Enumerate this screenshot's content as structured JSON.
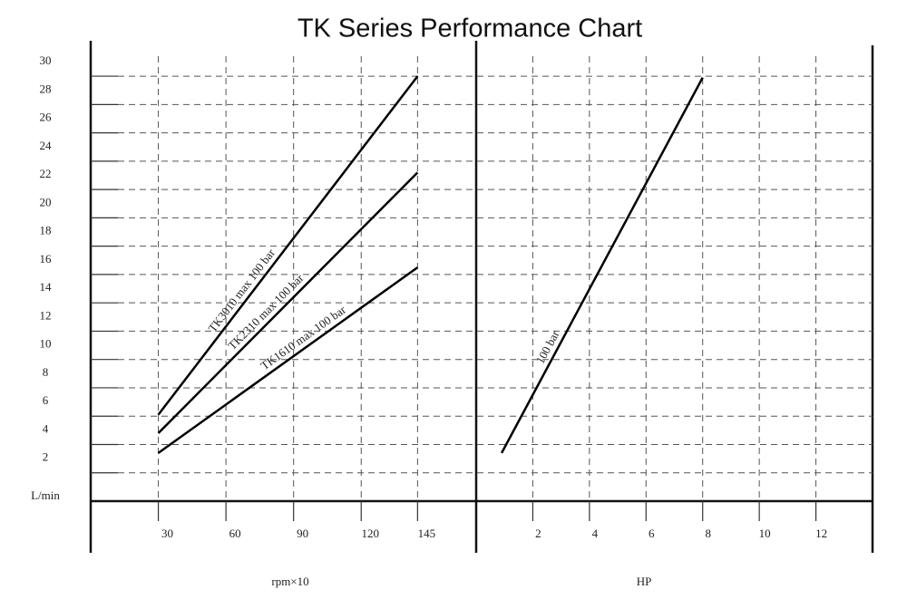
{
  "chart_data": [
    {
      "type": "line",
      "title": "TK Series Performance Chart",
      "x_label": "rpm×10",
      "y_label": "L/min",
      "x": [
        30,
        145
      ],
      "xlim": [
        0,
        171
      ],
      "xticks": [
        30,
        60,
        90,
        120,
        145
      ],
      "ylim": [
        0,
        32.5
      ],
      "yticks": [
        2,
        4,
        6,
        8,
        10,
        12,
        14,
        16,
        18,
        20,
        22,
        24,
        26,
        28,
        30
      ],
      "grid": true,
      "series": [
        {
          "name": "TK3010 max 100 bar",
          "color": "#000000",
          "values": [
            6.1,
            30
          ]
        },
        {
          "name": "TK2310 max 100 bar",
          "color": "#000000",
          "values": [
            4.8,
            23.2
          ]
        },
        {
          "name": "TK1610 max 100 bar",
          "color": "#000000",
          "values": [
            3.4,
            16.5
          ]
        }
      ]
    },
    {
      "type": "line",
      "x_label": "HP",
      "x": [
        0.9,
        8
      ],
      "xlim": [
        0,
        14
      ],
      "xticks": [
        2,
        4,
        6,
        8,
        10,
        12
      ],
      "ylim": [
        0,
        32.5
      ],
      "grid": true,
      "series": [
        {
          "name": "100 bar",
          "color": "#000000",
          "values": [
            3.4,
            29.9
          ]
        }
      ]
    }
  ]
}
